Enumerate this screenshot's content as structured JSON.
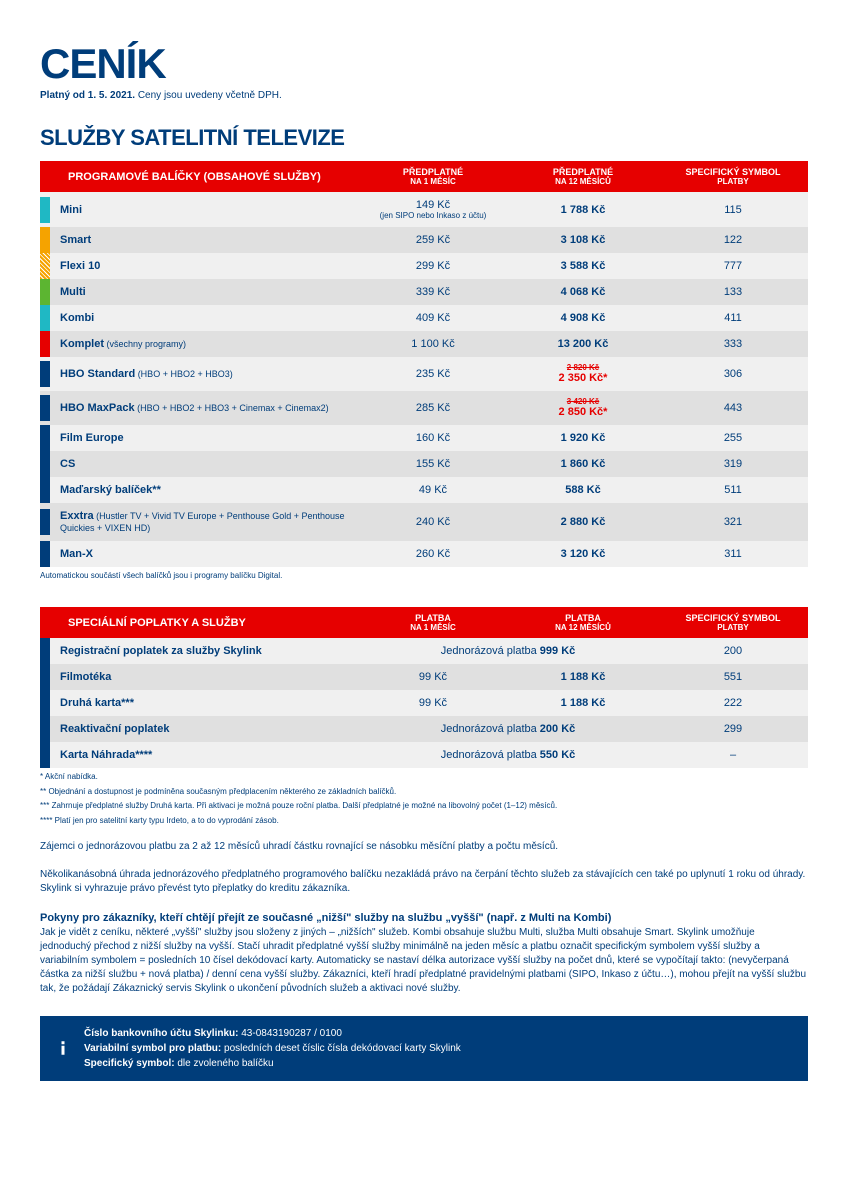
{
  "header": {
    "title": "CENÍK",
    "subtitle_bold": "Platný od 1. 5. 2021.",
    "subtitle_rest": " Ceny jsou uvedeny včetně DPH."
  },
  "section1": {
    "title": "SLUŽBY SATELITNÍ TELEVIZE",
    "table_header": {
      "col1": "PROGRAMOVÉ BALÍČKY (OBSAHOVÉ SLUŽBY)",
      "col2_l1": "PŘEDPLATNÉ",
      "col2_l2": "NA 1 MĚSÍC",
      "col3_l1": "PŘEDPLATNÉ",
      "col3_l2": "NA 12 MĚSÍCŮ",
      "col4_l1": "SPECIFICKÝ SYMBOL",
      "col4_l2": "PLATBY"
    },
    "rows": [
      {
        "swatch": "#1fb8c4",
        "name": "Mini",
        "note": "",
        "m1": "149 Kč",
        "m1_sub": "(jen SIPO nebo Inkaso z účtu)",
        "m12": "1 788 Kč",
        "sym": "115",
        "alt": false
      },
      {
        "swatch": "#f5a300",
        "name": "Smart",
        "note": "",
        "m1": "259 Kč",
        "m12": "3 108 Kč",
        "sym": "122",
        "alt": true
      },
      {
        "swatch": "#f5a300",
        "name": "Flexi 10",
        "note": "",
        "m1": "299 Kč",
        "m12": "3 588 Kč",
        "sym": "777",
        "alt": false,
        "dotted": true
      },
      {
        "swatch": "#5cb531",
        "name": "Multi",
        "note": "",
        "m1": "339 Kč",
        "m12": "4 068 Kč",
        "sym": "133",
        "alt": true
      },
      {
        "swatch": "#1fb8c4",
        "name": "Kombi",
        "note": "",
        "m1": "409 Kč",
        "m12": "4 908 Kč",
        "sym": "411",
        "alt": false
      },
      {
        "swatch": "#e60000",
        "name": "Komplet",
        "note": " (všechny programy)",
        "m1": "1 100 Kč",
        "m12": "13 200 Kč",
        "sym": "333",
        "alt": true
      },
      {
        "swatch": "#003d7a",
        "name": "HBO Standard",
        "note": " (HBO + HBO2 + HBO3)",
        "m1": "235 Kč",
        "m12_strike": "2 820 Kč",
        "m12_promo": "2 350 Kč*",
        "sym": "306",
        "alt": false
      },
      {
        "swatch": "#003d7a",
        "name": "HBO MaxPack",
        "note": " (HBO + HBO2 + HBO3 + Cinemax + Cinemax2)",
        "m1": "285 Kč",
        "m12_strike": "3 420 Kč",
        "m12_promo": "2 850 Kč*",
        "sym": "443",
        "alt": true
      },
      {
        "swatch": "#003d7a",
        "name": "Film Europe",
        "note": "",
        "m1": "160 Kč",
        "m12": "1 920 Kč",
        "sym": "255",
        "alt": false
      },
      {
        "swatch": "#003d7a",
        "name": "CS",
        "note": "",
        "m1": "155 Kč",
        "m12": "1 860 Kč",
        "sym": "319",
        "alt": true
      },
      {
        "swatch": "#003d7a",
        "name": "Maďarský balíček**",
        "note": "",
        "m1": "49 Kč",
        "m12": "588 Kč",
        "sym": "511",
        "alt": false
      },
      {
        "swatch": "#003d7a",
        "name": "Exxtra",
        "note": " (Hustler TV + Vivid TV Europe + Penthouse Gold + Penthouse Quickies + VIXEN HD)",
        "m1": "240 Kč",
        "m12": "2 880 Kč",
        "sym": "321",
        "alt": true
      },
      {
        "swatch": "#003d7a",
        "name": "Man-X",
        "note": "",
        "m1": "260 Kč",
        "m12": "3 120 Kč",
        "sym": "311",
        "alt": false
      }
    ],
    "footnote": "Automatickou součástí všech balíčků jsou i programy balíčku Digital."
  },
  "section2": {
    "table_header": {
      "col1": "SPECIÁLNÍ POPLATKY A SLUŽBY",
      "col2_l1": "PLATBA",
      "col2_l2": "NA 1 MĚSÍC",
      "col3_l1": "PLATBA",
      "col3_l2": "NA 12 MĚSÍCŮ",
      "col4_l1": "SPECIFICKÝ SYMBOL",
      "col4_l2": "PLATBY"
    },
    "rows": [
      {
        "swatch": "#003d7a",
        "name": "Registrační poplatek za služby Skylink",
        "merged_pre": "Jednorázová platba ",
        "merged_bold": "999 Kč",
        "sym": "200",
        "alt": false
      },
      {
        "swatch": "#003d7a",
        "name": "Filmotéka",
        "m1": "99 Kč",
        "m12": "1 188 Kč",
        "sym": "551",
        "alt": true
      },
      {
        "swatch": "#003d7a",
        "name": "Druhá karta***",
        "m1": "99 Kč",
        "m12": "1 188 Kč",
        "sym": "222",
        "alt": false
      },
      {
        "swatch": "#003d7a",
        "name": "Reaktivační poplatek",
        "merged_pre": "Jednorázová platba ",
        "merged_bold": "200 Kč",
        "sym": "299",
        "alt": true
      },
      {
        "swatch": "#003d7a",
        "name": "Karta Náhrada****",
        "merged_pre": "Jednorázová platba ",
        "merged_bold": "550 Kč",
        "sym": "–",
        "alt": false
      }
    ],
    "footnotes": [
      "* Akční nabídka.",
      "** Objednání a dostupnost je podmíněna současným předplacením některého ze základních balíčků.",
      "*** Zahrnuje předplatné služby Druhá karta. Při aktivaci je možná pouze roční platba. Další předplatné je možné na libovolný počet (1–12) měsíců.",
      "**** Platí jen pro satelitní karty typu Irdeto, a to do vyprodání zásob."
    ]
  },
  "body": {
    "p1": "Zájemci o jednorázovou platbu za 2 až 12 měsíců uhradí částku rovnající se násobku měsíční platby a počtu měsíců.",
    "p2": "Několikanásobná úhrada jednorázového předplatného programového balíčku nezakládá právo na čerpání těchto služeb za stávajících cen také po uplynutí 1 roku od úhrady. Skylink si vyhrazuje právo převést tyto přeplatky do kreditu zákazníka.",
    "h3": "Pokyny pro zákazníky, kteří chtějí přejít ze současné „nižší\" služby na službu „vyšší\" (např. z Multi na Kombi)",
    "p3": "Jak je vidět z ceníku, některé „vyšší\" služby jsou složeny z jiných – „nižších\" služeb. Kombi obsahuje službu Multi, služba Multi obsahuje Smart. Skylink umožňuje jednoduchý přechod z nižší služby na vyšší. Stačí uhradit předplatné vyšší služby minimálně na jeden měsíc a platbu označit specifickým symbolem vyšší služby a variabilním symbolem = posledních 10 čísel dekódovací karty. Automaticky se nastaví délka autorizace vyšší služby na počet dnů, které se vypočítají takto: (nevyčerpaná částka za nižší službu + nová platba) / denní cena vyšší služby. Zákazníci, kteří hradí předplatné pravidelnými platbami (SIPO, Inkaso z účtu…), mohou přejít na vyšší službu tak, že požádají Zákaznický servis Skylink o ukončení původních služeb a aktivaci nové služby."
  },
  "info": {
    "l1_b": "Číslo bankovního účtu Skylinku:",
    "l1": " 43-0843190287 / 0100",
    "l2_b": "Variabilní symbol pro platbu:",
    "l2": " posledních deset číslic čísla dekódovací karty Skylink",
    "l3_b": "Specifický symbol:",
    "l3": " dle zvoleného balíčku"
  },
  "colors": {
    "primary": "#003d7a",
    "accent": "#e60000"
  }
}
